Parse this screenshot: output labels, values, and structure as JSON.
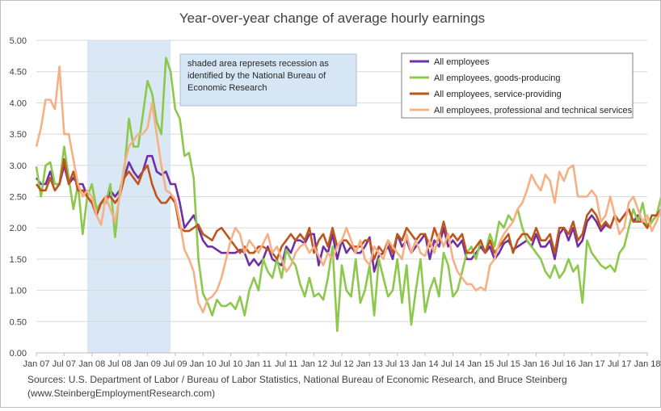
{
  "chart_data": {
    "type": "line",
    "title": "Year-over-year change of average hourly earnings",
    "xlabel": "",
    "ylabel": "",
    "ylim": [
      0,
      5
    ],
    "yticks": [
      "0.00",
      "0.50",
      "1.00",
      "1.50",
      "2.00",
      "2.50",
      "3.00",
      "3.50",
      "4.00",
      "4.50",
      "5.00"
    ],
    "xticks": [
      "Jan 07",
      "Jul 07",
      "Jan 08",
      "Jul 08",
      "Jan 09",
      "Jul 09",
      "Jan 10",
      "Jul 10",
      "Jan 11",
      "Jul 11",
      "Jan 12",
      "Jul 12",
      "Jan 13",
      "Jul 13",
      "Jan 14",
      "Jul 14",
      "Jan 15",
      "Jul 15",
      "Jan 16",
      "Jul 16",
      "Jan 17",
      "Jul 17",
      "Jan 18"
    ],
    "x_start": "Jan 07",
    "x_end": "Jan 18",
    "grid": true,
    "legend_position": "top-right",
    "recession": {
      "start": "Dec 07",
      "end": "Jun 09",
      "color": "#dae8f6"
    },
    "annotation": [
      "shaded area represets recession as",
      "identified by the National Bureau of",
      "Economic Research"
    ],
    "sources": [
      "Sources: U.S. Department of Labor / Bureau of Labor Statistics, National Bureau of Economic Research, and Bruce Steinberg",
      "(www.SteinbergEmploymentResearch.com)"
    ],
    "series": [
      {
        "name": "All employees",
        "color": "#7030a0",
        "values": [
          2.8,
          2.7,
          2.7,
          2.9,
          2.7,
          2.7,
          3.0,
          2.7,
          2.8,
          2.7,
          2.7,
          2.5,
          2.4,
          2.3,
          2.4,
          2.4,
          2.6,
          2.5,
          2.6,
          2.8,
          3.05,
          2.9,
          2.8,
          2.9,
          3.15,
          3.15,
          2.9,
          2.85,
          2.9,
          2.7,
          2.7,
          2.4,
          2.0,
          2.1,
          2.2,
          2.0,
          1.8,
          1.7,
          1.7,
          1.65,
          1.6,
          1.6,
          1.6,
          1.6,
          1.65,
          1.6,
          1.4,
          1.5,
          1.4,
          1.5,
          1.7,
          1.5,
          1.45,
          1.4,
          1.7,
          1.6,
          1.8,
          1.8,
          1.75,
          1.9,
          1.9,
          1.4,
          1.7,
          1.6,
          1.9,
          1.5,
          1.8,
          1.6,
          1.7,
          1.6,
          1.6,
          1.7,
          1.85,
          1.3,
          1.55,
          1.6,
          1.7,
          1.5,
          1.9,
          1.7,
          1.8,
          1.6,
          1.7,
          1.8,
          1.9,
          1.5,
          1.8,
          1.7,
          2.0,
          1.7,
          1.8,
          1.7,
          1.8,
          1.5,
          1.5,
          1.6,
          1.7,
          1.6,
          1.7,
          1.5,
          1.6,
          1.75,
          1.8,
          1.65,
          1.7,
          1.75,
          1.8,
          1.7,
          1.9,
          1.7,
          1.7,
          1.8,
          1.5,
          1.9,
          2.0,
          1.8,
          2.0,
          1.7,
          1.8,
          2.1,
          2.2,
          2.1,
          1.95,
          2.05,
          2.0,
          2.2,
          2.1,
          2.2,
          2.3,
          2.1,
          2.2,
          2.1,
          2.0,
          2.1,
          2.2,
          2.3,
          2.2,
          2.2,
          2.4,
          2.0,
          2.1,
          2.05,
          2.2,
          2.1,
          2.2,
          2.2,
          2.1,
          2.2,
          2.1,
          2.0,
          2.2,
          2.25,
          2.0,
          2.1,
          2.2,
          2.3,
          2.25,
          2.1,
          2.2,
          2.3
        ]
      },
      {
        "name": "All employees, goods-producing",
        "color": "#8cc84b",
        "values": [
          2.98,
          2.5,
          3.0,
          3.05,
          2.7,
          2.7,
          3.3,
          2.8,
          2.3,
          2.7,
          1.9,
          2.5,
          2.7,
          2.3,
          2.4,
          2.4,
          2.7,
          1.85,
          2.6,
          2.9,
          3.75,
          3.3,
          3.3,
          3.8,
          4.35,
          4.15,
          3.7,
          3.5,
          4.72,
          4.5,
          3.9,
          3.75,
          3.15,
          3.2,
          2.8,
          1.5,
          0.95,
          0.8,
          0.6,
          0.85,
          0.75,
          0.75,
          0.8,
          0.7,
          0.9,
          0.6,
          1.0,
          1.2,
          1.0,
          1.5,
          1.3,
          1.2,
          1.5,
          1.2,
          1.65,
          1.5,
          1.4,
          1.1,
          0.9,
          1.2,
          0.9,
          0.95,
          0.85,
          1.2,
          1.7,
          0.35,
          1.4,
          1.0,
          0.9,
          1.5,
          0.8,
          1.0,
          1.4,
          0.6,
          1.5,
          1.2,
          0.9,
          1.0,
          1.5,
          0.8,
          1.4,
          0.45,
          1.0,
          1.5,
          0.65,
          1.0,
          1.2,
          0.9,
          1.6,
          1.4,
          0.9,
          1.0,
          1.3,
          1.6,
          1.7,
          1.5,
          1.8,
          1.6,
          1.9,
          1.7,
          2.1,
          2.0,
          2.2,
          2.1,
          2.3,
          2.0,
          1.8,
          1.7,
          1.6,
          1.5,
          1.3,
          1.2,
          1.4,
          1.2,
          1.3,
          1.5,
          1.3,
          1.4,
          0.8,
          1.8,
          1.6,
          1.5,
          1.4,
          1.35,
          1.4,
          1.3,
          1.6,
          1.7,
          2.0,
          2.3,
          2.1,
          2.4,
          2.0,
          2.1,
          2.2,
          2.5,
          2.6,
          2.4,
          2.5,
          2.2,
          2.3,
          2.0,
          2.1,
          2.4,
          2.2,
          2.3,
          2.7,
          2.2,
          2.3,
          2.0,
          2.1,
          1.8,
          1.9,
          1.7,
          1.6,
          1.8,
          1.9,
          2.0,
          1.6,
          1.5,
          1.9,
          1.8,
          1.9,
          1.95
        ]
      },
      {
        "name": "All employees, service-providing",
        "color": "#c0551c",
        "values": [
          2.7,
          2.6,
          2.6,
          2.8,
          2.6,
          2.7,
          3.1,
          2.7,
          2.9,
          2.6,
          2.6,
          2.5,
          2.4,
          2.2,
          2.4,
          2.5,
          2.5,
          2.4,
          2.5,
          2.8,
          2.9,
          2.8,
          2.7,
          2.9,
          3.0,
          2.7,
          2.5,
          2.4,
          2.4,
          2.5,
          2.4,
          2.0,
          1.95,
          1.95,
          2.0,
          2.05,
          1.9,
          1.85,
          1.8,
          1.95,
          2.0,
          1.9,
          1.8,
          1.7,
          1.6,
          1.7,
          1.6,
          1.6,
          1.7,
          1.7,
          1.65,
          1.6,
          1.5,
          1.7,
          1.8,
          1.9,
          1.8,
          1.9,
          1.8,
          2.0,
          1.6,
          1.8,
          1.9,
          1.7,
          2.0,
          1.7,
          1.8,
          1.8,
          1.7,
          1.7,
          1.7,
          1.8,
          1.8,
          1.5,
          1.7,
          1.6,
          1.8,
          1.6,
          1.9,
          1.8,
          2.0,
          1.9,
          1.8,
          1.9,
          1.9,
          1.7,
          2.0,
          1.8,
          2.1,
          1.8,
          1.9,
          1.8,
          1.9,
          1.6,
          1.6,
          1.7,
          1.8,
          1.6,
          1.8,
          1.6,
          1.7,
          1.8,
          1.9,
          1.6,
          1.8,
          1.9,
          1.9,
          1.8,
          2.0,
          1.8,
          1.8,
          1.9,
          1.6,
          2.0,
          2.0,
          1.9,
          2.1,
          1.8,
          1.9,
          2.2,
          2.3,
          2.2,
          2.0,
          2.1,
          2.0,
          2.2,
          2.1,
          2.2,
          2.3,
          2.1,
          2.1,
          2.1,
          2.0,
          2.2,
          2.2,
          2.3,
          2.2,
          2.2,
          2.4,
          2.1,
          2.1,
          2.1,
          2.2,
          2.1,
          2.2,
          2.2,
          2.1,
          2.1,
          2.1,
          2.0,
          2.2,
          2.25,
          2.0,
          2.1,
          2.2,
          2.3,
          2.3,
          2.1,
          2.3,
          2.35
        ]
      },
      {
        "name": "All employees, professional and technical services",
        "color": "#f5b085",
        "values": [
          3.3,
          3.6,
          4.05,
          4.05,
          3.9,
          4.58,
          3.5,
          3.5,
          3.1,
          2.7,
          2.5,
          2.6,
          2.5,
          2.2,
          2.05,
          2.5,
          2.3,
          2.1,
          2.5,
          3.0,
          3.3,
          3.4,
          3.5,
          3.5,
          3.6,
          4.0,
          3.5,
          3.0,
          2.6,
          2.55,
          2.45,
          2.1,
          1.65,
          1.5,
          1.3,
          0.8,
          0.65,
          0.85,
          0.9,
          1.0,
          1.2,
          1.5,
          1.8,
          2.0,
          1.9,
          1.6,
          1.8,
          1.7,
          1.6,
          1.75,
          1.9,
          1.6,
          1.7,
          1.5,
          1.3,
          1.4,
          1.6,
          1.7,
          1.75,
          1.6,
          1.7,
          1.55,
          1.4,
          1.6,
          1.5,
          1.7,
          1.8,
          2.0,
          1.8,
          1.6,
          1.8,
          1.5,
          1.4,
          1.7,
          1.6,
          1.5,
          1.8,
          1.7,
          1.6,
          1.5,
          1.9,
          1.6,
          1.8,
          1.6,
          1.55,
          1.8,
          1.6,
          1.9,
          1.7,
          1.9,
          1.5,
          1.3,
          1.2,
          1.1,
          1.1,
          1.0,
          1.05,
          1.0,
          1.4,
          1.5,
          1.75,
          1.9,
          2.0,
          2.1,
          2.3,
          2.4,
          2.6,
          2.85,
          2.7,
          2.6,
          2.85,
          2.75,
          2.4,
          2.9,
          2.75,
          2.95,
          3.0,
          2.5,
          2.5,
          2.5,
          2.6,
          2.5,
          2.1,
          2.2,
          2.5,
          2.2,
          1.9,
          2.0,
          2.4,
          2.5,
          2.3,
          2.1,
          2.2,
          1.95,
          2.1,
          2.3,
          2.2,
          1.9,
          2.3,
          1.9,
          2.0,
          1.85,
          2.0,
          1.65,
          2.1,
          1.75,
          2.0,
          1.9,
          2.2,
          1.7,
          2.1,
          2.2,
          1.8,
          1.85,
          1.8,
          2.0,
          1.7,
          1.9,
          2.2,
          1.9,
          2.05,
          1.6,
          2.1,
          1.55
        ]
      }
    ]
  }
}
